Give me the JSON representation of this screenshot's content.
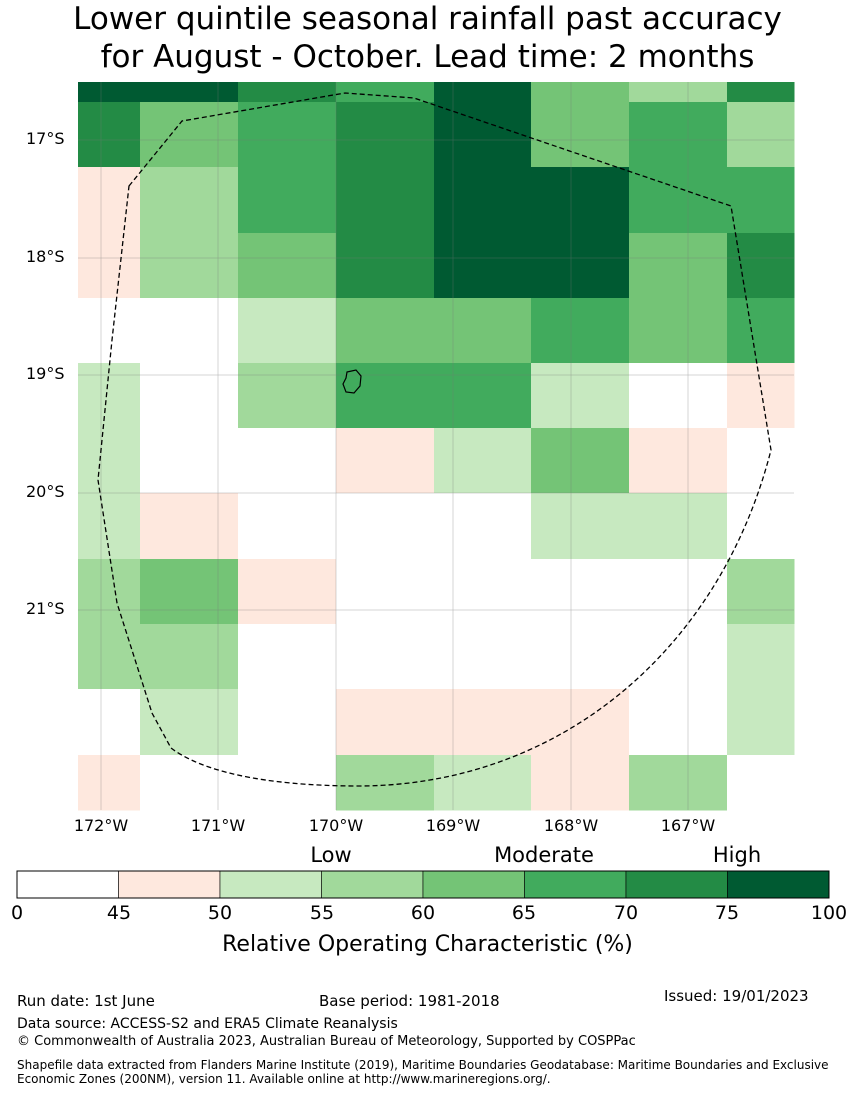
{
  "title": {
    "line1": "Lower quintile seasonal rainfall past accuracy",
    "line2": "for August - October. Lead time: 2 months"
  },
  "map": {
    "lat_ticks": [
      "17°S",
      "18°S",
      "19°S",
      "20°S",
      "21°S"
    ],
    "lon_ticks": [
      "172°W",
      "171°W",
      "170°W",
      "169°W",
      "168°W",
      "167°W"
    ],
    "grid_roc_percent_category": [
      [
        "75-100",
        "75-100",
        "70-75",
        "65-70",
        "75-100",
        "60-65",
        "55-60",
        "70-75"
      ],
      [
        "70-75",
        "60-65",
        "65-70",
        "70-75",
        "75-100",
        "60-65",
        "65-70",
        "55-60"
      ],
      [
        "45-50",
        "55-60",
        "65-70",
        "70-75",
        "75-100",
        "75-100",
        "65-70",
        "65-70"
      ],
      [
        "45-50",
        "55-60",
        "60-65",
        "70-75",
        "75-100",
        "75-100",
        "60-65",
        "70-75"
      ],
      [
        "0-45",
        "0-45",
        "50-55",
        "60-65",
        "60-65",
        "65-70",
        "60-65",
        "65-70"
      ],
      [
        "50-55",
        "0-45",
        "55-60",
        "65-70",
        "65-70",
        "50-55",
        "0-45",
        "45-50"
      ],
      [
        "50-55",
        "0-45",
        "0-45",
        "45-50",
        "50-55",
        "60-65",
        "45-50",
        "0-45"
      ],
      [
        "50-55",
        "45-50",
        "0-45",
        "0-45",
        "0-45",
        "50-55",
        "50-55",
        "0-45"
      ],
      [
        "55-60",
        "60-65",
        "45-50",
        "0-45",
        "0-45",
        "0-45",
        "0-45",
        "55-60"
      ],
      [
        "55-60",
        "55-60",
        "0-45",
        "0-45",
        "0-45",
        "0-45",
        "0-45",
        "50-55"
      ],
      [
        "0-45",
        "50-55",
        "0-45",
        "45-50",
        "45-50",
        "45-50",
        "0-45",
        "50-55"
      ],
      [
        "45-50",
        "0-45",
        "0-45",
        "55-60",
        "50-55",
        "45-50",
        "55-60",
        "0-45"
      ]
    ]
  },
  "colorbar": {
    "categories": [
      "Low",
      "Moderate",
      "High"
    ],
    "ticks": [
      "0",
      "45",
      "50",
      "55",
      "60",
      "65",
      "70",
      "75",
      "100"
    ],
    "colors": [
      "#ffffff",
      "#fee8de",
      "#c7e9c0",
      "#a1d99b",
      "#74c476",
      "#41ab5d",
      "#238b45",
      "#005a32"
    ],
    "label": "Relative Operating Characteristic (%)"
  },
  "footer": {
    "run_date": "Run date: 1st June",
    "base_period": "Base period: 1981-2018",
    "issued": "Issued: 19/01/2023",
    "data_source": "Data source: ACCESS-S2 and ERA5 Climate Reanalysis",
    "copyright": "© Commonwealth of Australia 2023, Australian Bureau of Meteorology, Supported by COSPPac",
    "shapefile_line1": "Shapefile data extracted from Flanders Marine Institute (2019), Maritime Boundaries Geodatabase: Maritime Boundaries and Exclusive",
    "shapefile_line2": "Economic Zones (200NM), version 11. Available online at http://www.marineregions.org/."
  }
}
